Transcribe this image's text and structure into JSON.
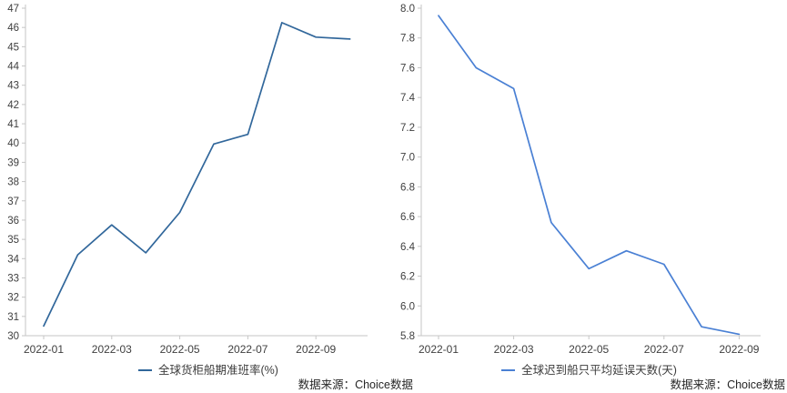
{
  "chart_data": [
    {
      "type": "line",
      "legend": "全球货柜船期准班率(%)",
      "source": "数据来源：Choice数据",
      "line_color": "#31679B",
      "x": [
        "2022-01",
        "2022-02",
        "2022-03",
        "2022-04",
        "2022-05",
        "2022-06",
        "2022-07",
        "2022-08",
        "2022-09",
        "2022-10"
      ],
      "values": [
        30.5,
        34.2,
        35.75,
        34.3,
        36.4,
        39.95,
        40.45,
        46.25,
        45.5,
        45.4
      ],
      "visible_xtick_labels": [
        "2022-01",
        "2022-03",
        "2022-05",
        "2022-07",
        "2022-09"
      ],
      "ylim": [
        30,
        47
      ],
      "ystep": 1,
      "ydecimals": 0,
      "grid": false,
      "legend_position": "bottom-center"
    },
    {
      "type": "line",
      "legend": "全球迟到船只平均延误天数(天)",
      "source": "数据来源：Choice数据",
      "line_color": "#4A80D4",
      "x": [
        "2022-01",
        "2022-02",
        "2022-03",
        "2022-04",
        "2022-05",
        "2022-06",
        "2022-07",
        "2022-08",
        "2022-09"
      ],
      "values": [
        7.95,
        7.6,
        7.46,
        6.56,
        6.25,
        6.37,
        6.28,
        5.86,
        5.81
      ],
      "visible_xtick_labels": [
        "2022-01",
        "2022-03",
        "2022-05",
        "2022-07",
        "2022-09"
      ],
      "ylim": [
        5.8,
        8.0
      ],
      "ystep": 0.2,
      "ydecimals": 1,
      "grid": false,
      "legend_position": "bottom-center"
    }
  ]
}
